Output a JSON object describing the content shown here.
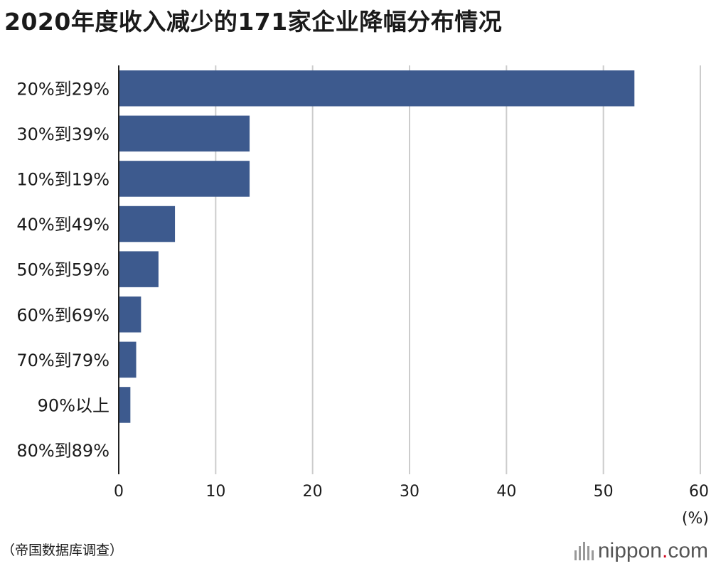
{
  "title": "2020年度收入减少的171家企业降幅分布情况",
  "source": "（帝国数据库调查）",
  "brand": {
    "name": "nippon",
    "dot": ".",
    "suffix": "com",
    "icon": "nippon-logo-icon"
  },
  "colors": {
    "bar": "#3d5a8e",
    "grid": "#cccccc",
    "axis": "#222222",
    "brand_dot": "#d0021b"
  },
  "chart_data": {
    "type": "bar",
    "orientation": "horizontal",
    "categories": [
      "20%到29%",
      "30%到39%",
      "10%到19%",
      "40%到49%",
      "50%到59%",
      "60%到69%",
      "70%到79%",
      "90%以上",
      "80%到89%"
    ],
    "values": [
      53.2,
      13.5,
      13.5,
      5.8,
      4.1,
      2.3,
      1.8,
      1.2,
      0
    ],
    "xlim": [
      0,
      60
    ],
    "xticks": [
      0,
      10,
      20,
      30,
      40,
      50,
      60
    ],
    "xunit": "(%)",
    "grid": true
  }
}
